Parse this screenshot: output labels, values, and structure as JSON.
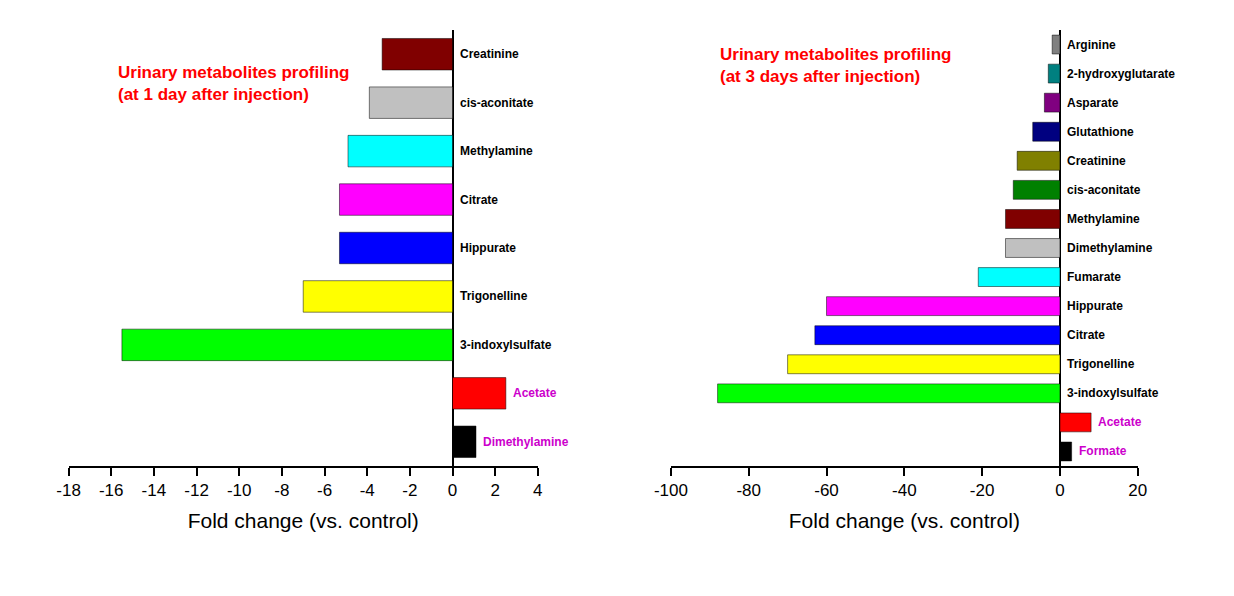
{
  "chart_data": [
    {
      "type": "bar",
      "orientation": "horizontal",
      "title": "Urinary metabolites profiling\n(at 1 day after injection)",
      "x_label": "Fold change (vs. control)",
      "categories": [
        "Creatinine",
        "cis-aconitate",
        "Methylamine",
        "Citrate",
        "Hippurate",
        "Trigonelline",
        "3-indoxylsulfate",
        "Acetate",
        "Dimethylamine"
      ],
      "values": [
        -3.3,
        -3.9,
        -4.9,
        -5.3,
        -5.3,
        -7.0,
        -15.5,
        2.5,
        1.1
      ],
      "colors": [
        "#800000",
        "#c0c0c0",
        "#00ffff",
        "#ff00ff",
        "#0000ff",
        "#ffff00",
        "#00ff00",
        "#ff0000",
        "#000000"
      ],
      "xlim": [
        -18,
        4
      ],
      "xticks": [
        -18,
        -16,
        -14,
        -12,
        -10,
        -8,
        -6,
        -4,
        -2,
        0,
        2,
        4
      ],
      "tick_labels": "x",
      "grid": false
    },
    {
      "type": "bar",
      "orientation": "horizontal",
      "title": "Urinary metabolites profiling\n(at 3 days after injection)",
      "x_label": "Fold change (vs. control)",
      "categories": [
        "Arginine",
        "2-hydroxyglutarate",
        "Asparate",
        "Glutathione",
        "Creatinine",
        "cis-aconitate",
        "Methylamine",
        "Dimethylamine",
        "Fumarate",
        "Hippurate",
        "Citrate",
        "Trigonelline",
        "3-indoxylsulfate",
        "Acetate",
        "Formate"
      ],
      "values": [
        -2,
        -3,
        -4,
        -7,
        -11,
        -12,
        -14,
        -14,
        -21,
        -60,
        -63,
        -70,
        -88,
        8,
        3
      ],
      "colors": [
        "#808080",
        "#008080",
        "#800080",
        "#000080",
        "#808000",
        "#008000",
        "#800000",
        "#c0c0c0",
        "#00ffff",
        "#ff00ff",
        "#0000ff",
        "#ffff00",
        "#00ff00",
        "#ff0000",
        "#000000"
      ],
      "xlim": [
        -100,
        20
      ],
      "xticks": [
        -100,
        -80,
        -60,
        -40,
        -20,
        0,
        20
      ],
      "tick_labels": "x",
      "grid": false
    }
  ]
}
